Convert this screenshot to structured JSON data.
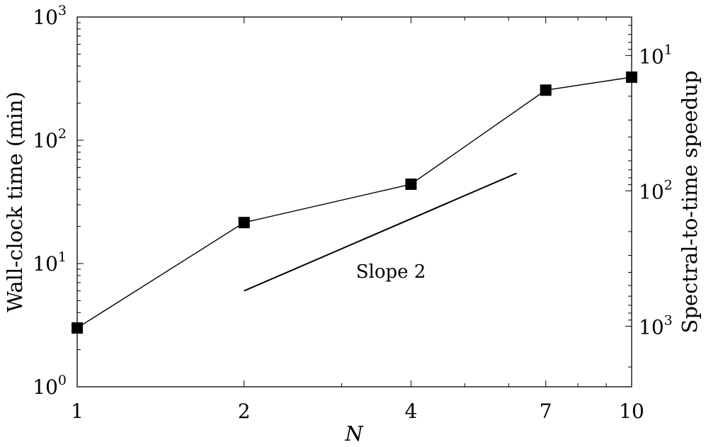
{
  "chart_data": {
    "type": "line",
    "x": [
      1,
      2,
      4,
      7,
      10
    ],
    "series": [
      {
        "values": [
          3,
          21.5,
          44,
          255,
          325
        ],
        "marker": "square",
        "color": "#000000"
      }
    ],
    "reference_line": {
      "label": "Slope 2",
      "x": [
        2,
        6.2
      ],
      "y": [
        6,
        54
      ]
    },
    "xlabel": "N",
    "ylabel": "Wall-clock time (min)",
    "y2label": "Spectral-to-time speedup",
    "x_scale": "log",
    "y_scale": "log",
    "xlim": [
      1,
      10
    ],
    "ylim": [
      1,
      1000
    ],
    "x_ticks": [
      1,
      2,
      4,
      7,
      10
    ],
    "x_tick_labels": [
      "1",
      "2",
      "4",
      "7",
      "10"
    ],
    "y_ticks": [
      {
        "value": 1,
        "base": "10",
        "exp": "0"
      },
      {
        "value": 10,
        "base": "10",
        "exp": "1"
      },
      {
        "value": 100,
        "base": "10",
        "exp": "2"
      },
      {
        "value": 1000,
        "base": "10",
        "exp": "3"
      }
    ],
    "y2_scale": "log",
    "y2_direction": "reversed",
    "y2lim": [
      5.2,
      2800
    ],
    "y2_ticks": [
      {
        "value": 10,
        "base": "10",
        "exp": "1"
      },
      {
        "value": 100,
        "base": "10",
        "exp": "2"
      },
      {
        "value": 1000,
        "base": "10",
        "exp": "3"
      }
    ],
    "grid": false,
    "legend": "none"
  }
}
